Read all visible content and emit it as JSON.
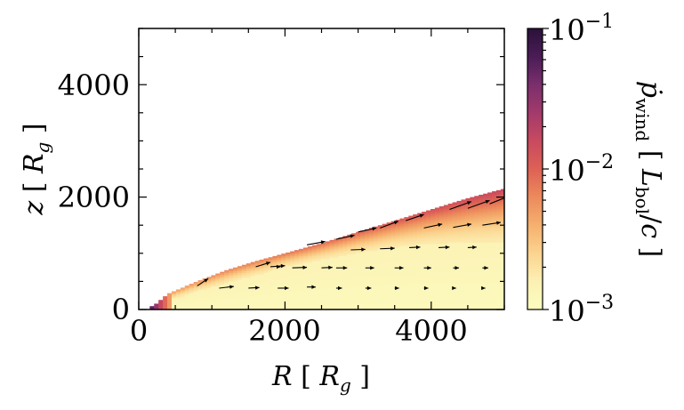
{
  "chart_data": {
    "type": "heatmap",
    "xlabel": "R [ R_g ]",
    "ylabel": "z [ R_g ]",
    "xlim": [
      0,
      5000
    ],
    "ylim": [
      0,
      5000
    ],
    "x_ticks": [
      "0",
      "2000",
      "4000"
    ],
    "y_ticks": [
      "0",
      "2000",
      "4000"
    ],
    "x_tick_values": [
      0,
      2000,
      4000
    ],
    "y_tick_values": [
      0,
      2000,
      4000
    ],
    "colorbar": {
      "label": "ṗ_wind [ L_bol / c ]",
      "scale": "log",
      "range": [
        0.001,
        0.1
      ],
      "tick_labels": [
        "10^-1",
        "10^-2",
        "10^-3"
      ],
      "tick_values": [
        0.1,
        0.01,
        0.001
      ],
      "colormap": "magma_r",
      "colors": [
        "#fcfdbf",
        "#fcf0b4",
        "#fbd48f",
        "#f5b06e",
        "#ec8a5c",
        "#dd6155",
        "#c84a5f",
        "#a23a6b",
        "#7a2f6c",
        "#4a1c56",
        "#2a1139"
      ]
    },
    "wind_surface_upper": {
      "R": [
        200,
        400,
        800,
        1200,
        1600,
        2000,
        2500,
        3000,
        3500,
        4000,
        4500,
        5000
      ],
      "z": [
        60,
        280,
        500,
        700,
        860,
        1000,
        1180,
        1380,
        1580,
        1780,
        1980,
        2150
      ]
    },
    "wind_surface_inner": {
      "R": [
        200,
        300,
        400,
        800,
        1200,
        1600,
        2000,
        2500,
        3000,
        3500,
        4000,
        4500,
        5000
      ],
      "z": [
        0,
        80,
        150,
        320,
        460,
        600,
        740,
        880,
        1000,
        1100,
        1160,
        1180,
        1200
      ]
    },
    "arrows": [
      {
        "R": 800,
        "z": 420,
        "dR": 150,
        "dz": 130
      },
      {
        "R": 1600,
        "z": 760,
        "dR": 200,
        "dz": 80
      },
      {
        "R": 3300,
        "z": 1450,
        "dR": 250,
        "dz": 120
      },
      {
        "R": 3650,
        "z": 1580,
        "dR": 250,
        "dz": 110
      },
      {
        "R": 4250,
        "z": 1780,
        "dR": 300,
        "dz": 140
      },
      {
        "R": 4500,
        "z": 1800,
        "dR": 300,
        "dz": 140
      },
      {
        "R": 4800,
        "z": 1880,
        "dR": 250,
        "dz": 130
      },
      {
        "R": 2300,
        "z": 1150,
        "dR": 250,
        "dz": 60
      },
      {
        "R": 2700,
        "z": 1250,
        "dR": 250,
        "dz": 70
      },
      {
        "R": 3000,
        "z": 1380,
        "dR": 250,
        "dz": 70
      },
      {
        "R": 3900,
        "z": 1450,
        "dR": 250,
        "dz": 70
      },
      {
        "R": 4300,
        "z": 1460,
        "dR": 250,
        "dz": 60
      },
      {
        "R": 4700,
        "z": 1500,
        "dR": 250,
        "dz": 50
      },
      {
        "R": 1800,
        "z": 760,
        "dR": 200,
        "dz": 20
      },
      {
        "R": 2100,
        "z": 740,
        "dR": 200,
        "dz": 10
      },
      {
        "R": 2500,
        "z": 740,
        "dR": 150,
        "dz": 10
      },
      {
        "R": 2900,
        "z": 1060,
        "dR": 200,
        "dz": 10
      },
      {
        "R": 3300,
        "z": 1080,
        "dR": 200,
        "dz": 10
      },
      {
        "R": 3700,
        "z": 1100,
        "dR": 150,
        "dz": 10
      },
      {
        "R": 4100,
        "z": 1100,
        "dR": 150,
        "dz": 10
      },
      {
        "R": 4500,
        "z": 1100,
        "dR": 120,
        "dz": 10
      },
      {
        "R": 1100,
        "z": 380,
        "dR": 200,
        "dz": 30
      },
      {
        "R": 1500,
        "z": 380,
        "dR": 150,
        "dz": 10
      },
      {
        "R": 1900,
        "z": 380,
        "dR": 150,
        "dz": 0
      },
      {
        "R": 2300,
        "z": 400,
        "dR": 120,
        "dz": 0
      },
      {
        "R": 2700,
        "z": 740,
        "dR": 150,
        "dz": 0
      },
      {
        "R": 3100,
        "z": 740,
        "dR": 120,
        "dz": 0
      },
      {
        "R": 3500,
        "z": 740,
        "dR": 120,
        "dz": 0
      },
      {
        "R": 3900,
        "z": 740,
        "dR": 100,
        "dz": 0
      },
      {
        "R": 4300,
        "z": 740,
        "dR": 80,
        "dz": 0
      },
      {
        "R": 4700,
        "z": 740,
        "dR": 80,
        "dz": 0
      },
      {
        "R": 2700,
        "z": 380,
        "dR": 80,
        "dz": 0
      },
      {
        "R": 3100,
        "z": 380,
        "dR": 80,
        "dz": 0
      },
      {
        "R": 3500,
        "z": 380,
        "dR": 60,
        "dz": 0
      },
      {
        "R": 3900,
        "z": 380,
        "dR": 60,
        "dz": 0
      },
      {
        "R": 4300,
        "z": 380,
        "dR": 40,
        "dz": 0
      },
      {
        "R": 4700,
        "z": 380,
        "dR": 40,
        "dz": 0
      },
      {
        "R": 1900,
        "z": 760,
        "dR": 40,
        "dz": 0
      }
    ]
  }
}
